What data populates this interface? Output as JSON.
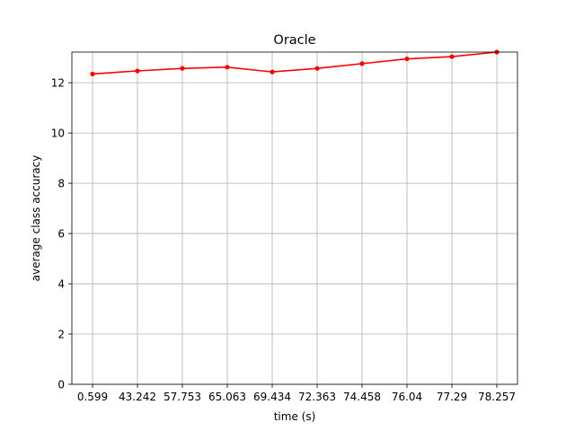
{
  "chart_data": {
    "type": "line",
    "title": "Oracle",
    "xlabel": "time (s)",
    "ylabel": "average class accuracy",
    "categories": [
      "0.599",
      "43.242",
      "57.753",
      "65.063",
      "69.434",
      "72.363",
      "74.458",
      "76.04",
      "77.29",
      "78.257"
    ],
    "series": [
      {
        "values": [
          12.35,
          12.47,
          12.57,
          12.62,
          12.43,
          12.57,
          12.76,
          12.95,
          13.04,
          13.22
        ],
        "color": "#ff0000",
        "marker": "circle"
      }
    ],
    "ylim": [
      0,
      13.22
    ],
    "yticks": [
      0,
      2,
      4,
      6,
      8,
      10,
      12
    ],
    "grid": true,
    "legend": "none"
  }
}
